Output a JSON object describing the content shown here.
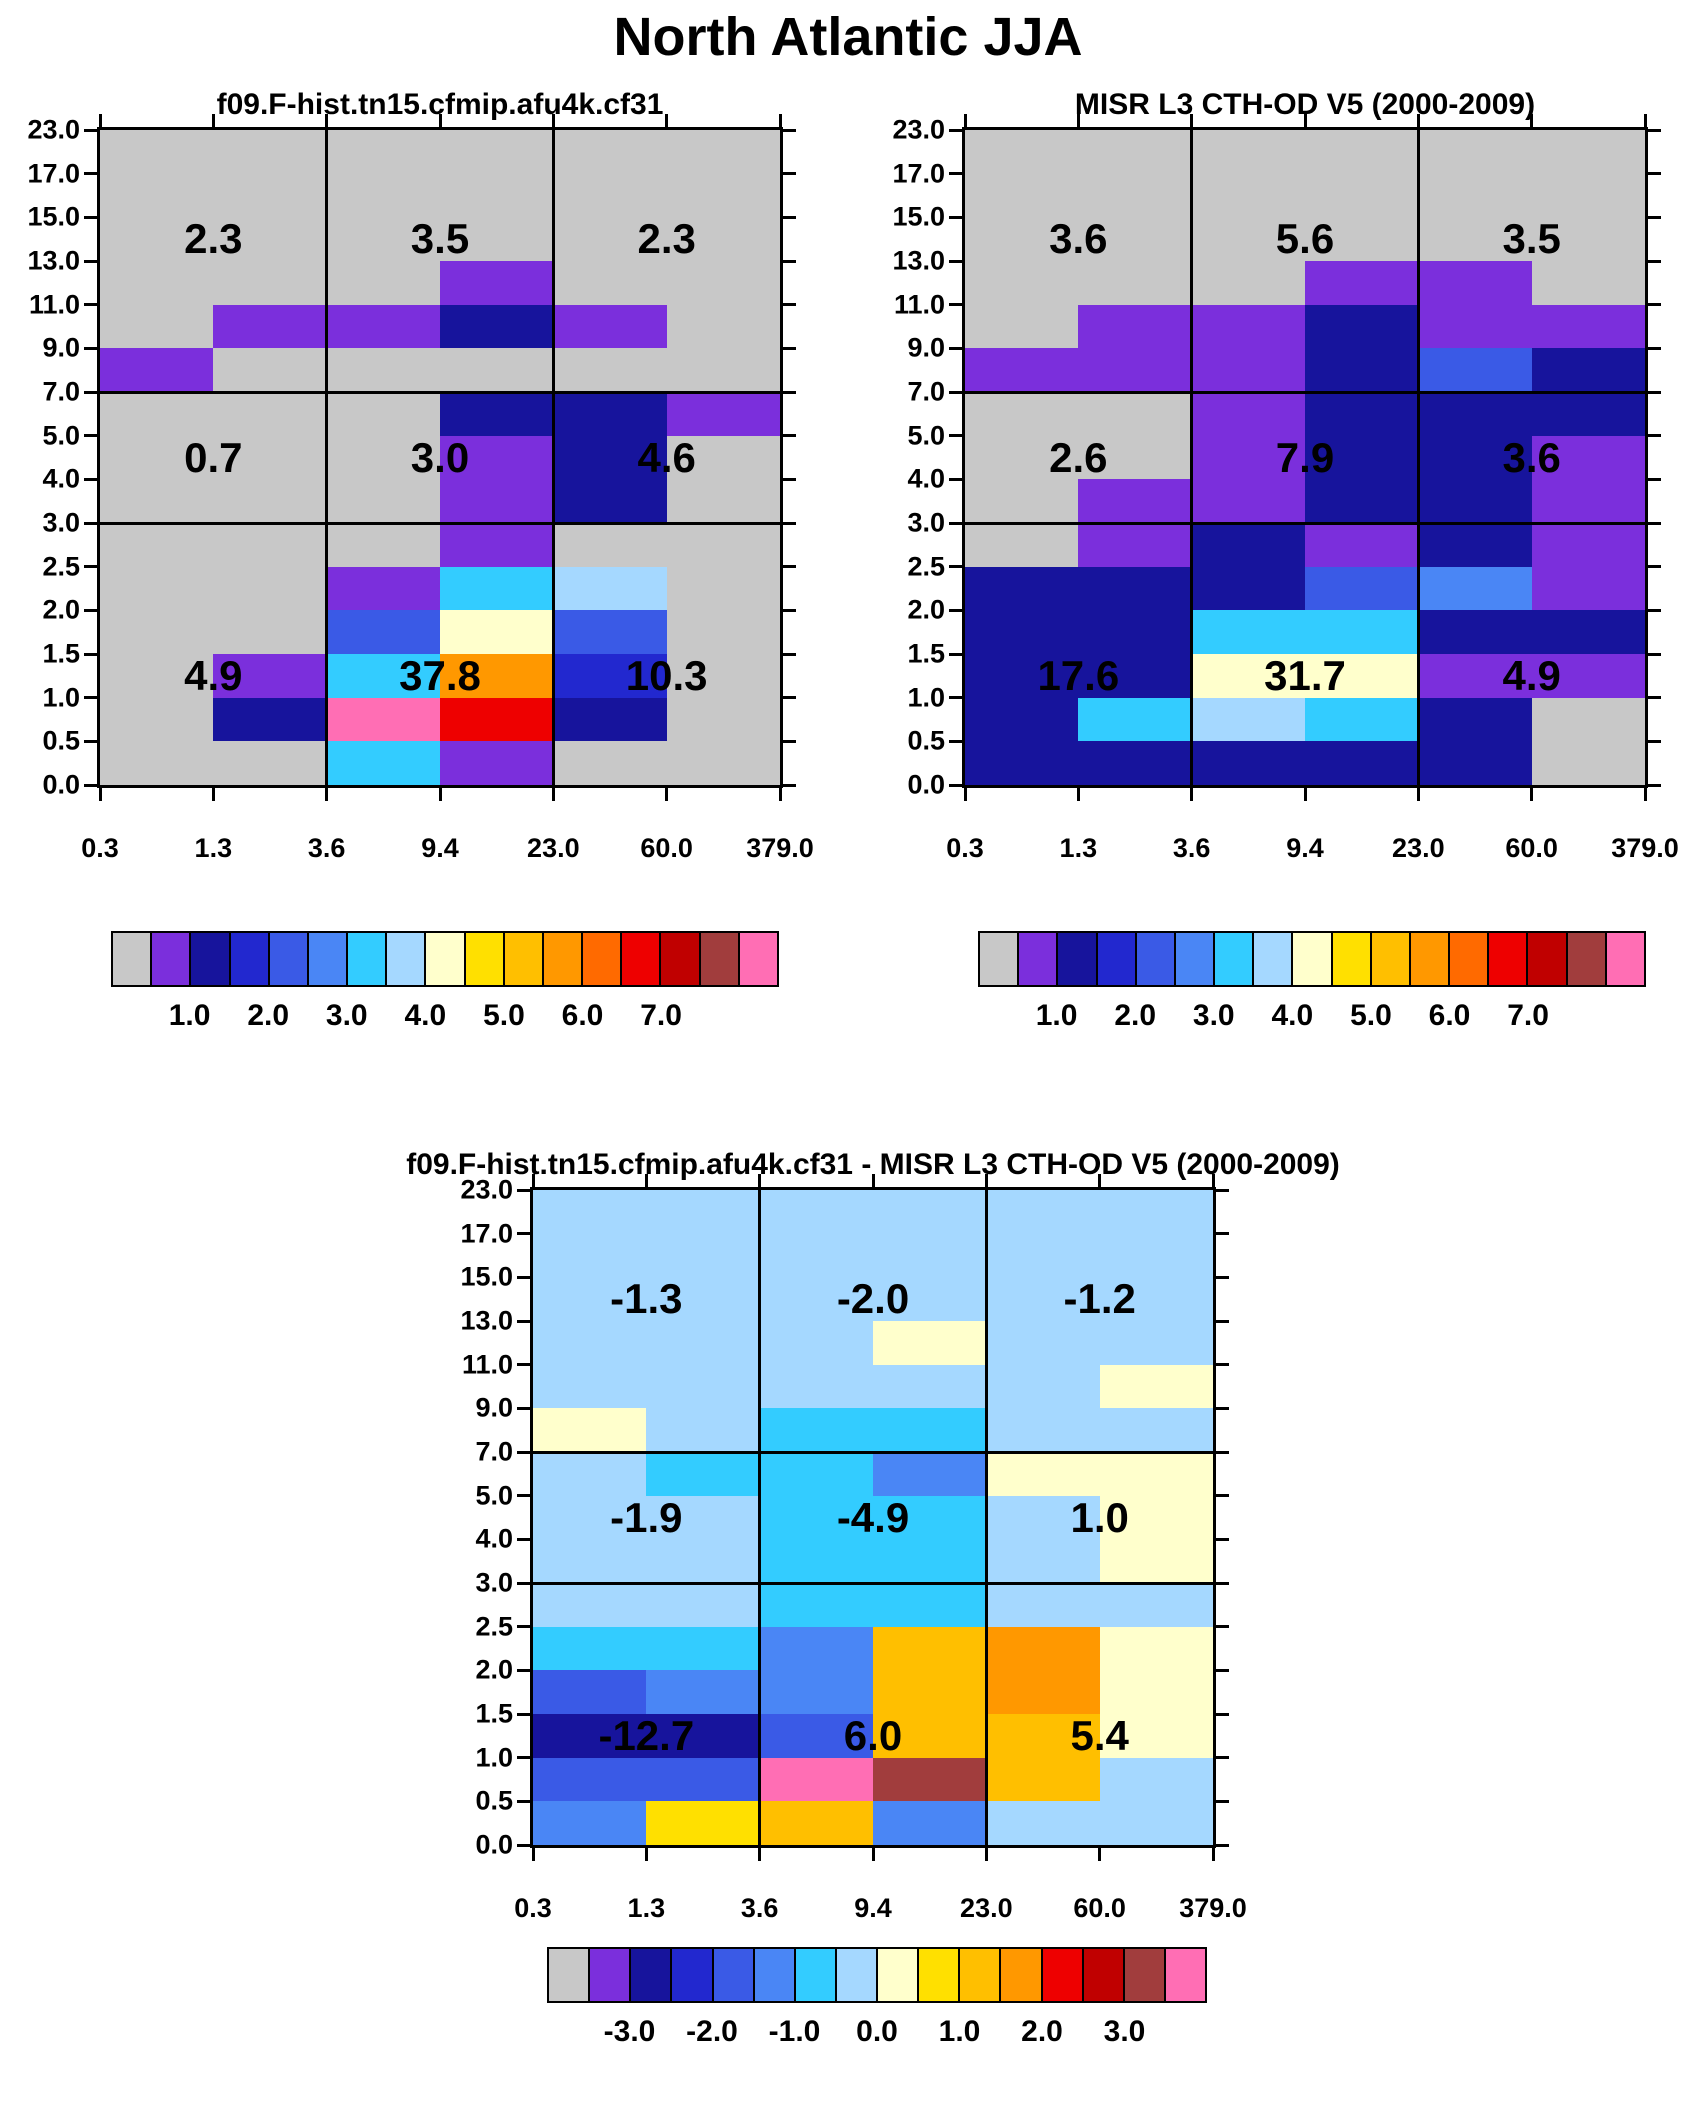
{
  "title": "North Atlantic JJA",
  "palettes": {
    "hist": [
      "#c8c8c8",
      "#7b2fdc",
      "#17149c",
      "#2228cf",
      "#3a5ae6",
      "#4a86f5",
      "#33ccff",
      "#a5d8ff",
      "#ffffcc",
      "#ffe000",
      "#ffbf00",
      "#ff9800",
      "#ff6a00",
      "#ee0000",
      "#c00000",
      "#a13d3d",
      "#ff6eb4"
    ],
    "diff": [
      "#c8c8c8",
      "#7b2fdc",
      "#17149c",
      "#2228cf",
      "#3a5ae6",
      "#4a86f5",
      "#33ccff",
      "#a5d8ff",
      "#ffffcc",
      "#ffe000",
      "#ffbf00",
      "#ff9800",
      "#ee0000",
      "#c00000",
      "#a13d3d",
      "#ff6eb4"
    ]
  },
  "chart_data": [
    {
      "type": "heatmap",
      "name": "model",
      "title": "f09.F-hist.tn15.cfmip.afu4k.cf31",
      "x_ticks": [
        "0.3",
        "1.3",
        "3.6",
        "9.4",
        "23.0",
        "60.0",
        "379.0"
      ],
      "y_ticks": [
        "23.0",
        "17.0",
        "15.0",
        "13.0",
        "11.0",
        "9.0",
        "7.0",
        "5.0",
        "4.0",
        "3.0",
        "2.5",
        "2.0",
        "1.5",
        "1.0",
        "0.5",
        "0.0"
      ],
      "palette": "hist",
      "grid": [
        [
          0,
          0,
          0,
          0,
          0,
          0
        ],
        [
          0,
          0,
          0,
          0,
          0,
          0
        ],
        [
          0,
          0,
          0,
          0,
          0,
          0
        ],
        [
          0,
          0,
          0,
          1,
          0,
          0
        ],
        [
          0,
          1,
          1,
          2,
          1,
          0
        ],
        [
          1,
          0,
          0,
          0,
          0,
          0
        ],
        [
          0,
          0,
          0,
          2,
          2,
          1
        ],
        [
          0,
          0,
          0,
          1,
          2,
          0
        ],
        [
          0,
          0,
          0,
          1,
          2,
          0
        ],
        [
          0,
          0,
          0,
          1,
          0,
          0
        ],
        [
          0,
          0,
          1,
          6,
          7,
          0
        ],
        [
          0,
          0,
          4,
          8,
          4,
          0
        ],
        [
          0,
          1,
          6,
          11,
          3,
          0
        ],
        [
          0,
          2,
          16,
          13,
          2,
          0
        ],
        [
          0,
          0,
          6,
          1,
          0,
          0
        ]
      ],
      "box_labels": [
        [
          "2.3",
          "3.5",
          "2.3"
        ],
        [
          "0.7",
          "3.0",
          "4.6"
        ],
        [
          "4.9",
          "37.8",
          "10.3"
        ]
      ],
      "colorbar_labels": [
        "1.0",
        "2.0",
        "3.0",
        "4.0",
        "5.0",
        "6.0",
        "7.0"
      ]
    },
    {
      "type": "heatmap",
      "name": "obs",
      "title": "MISR L3 CTH-OD V5 (2000-2009)",
      "x_ticks": [
        "0.3",
        "1.3",
        "3.6",
        "9.4",
        "23.0",
        "60.0",
        "379.0"
      ],
      "y_ticks": [
        "23.0",
        "17.0",
        "15.0",
        "13.0",
        "11.0",
        "9.0",
        "7.0",
        "5.0",
        "4.0",
        "3.0",
        "2.5",
        "2.0",
        "1.5",
        "1.0",
        "0.5",
        "0.0"
      ],
      "palette": "hist",
      "grid": [
        [
          0,
          0,
          0,
          0,
          0,
          0
        ],
        [
          0,
          0,
          0,
          0,
          0,
          0
        ],
        [
          0,
          0,
          0,
          0,
          0,
          0
        ],
        [
          0,
          0,
          0,
          1,
          1,
          0
        ],
        [
          0,
          1,
          1,
          2,
          1,
          1
        ],
        [
          1,
          1,
          1,
          2,
          4,
          2
        ],
        [
          0,
          0,
          1,
          2,
          2,
          2
        ],
        [
          0,
          0,
          1,
          2,
          2,
          1
        ],
        [
          0,
          1,
          1,
          2,
          2,
          1
        ],
        [
          0,
          1,
          2,
          1,
          2,
          1
        ],
        [
          2,
          2,
          2,
          4,
          5,
          1
        ],
        [
          2,
          2,
          6,
          6,
          2,
          2
        ],
        [
          2,
          2,
          8,
          8,
          1,
          1
        ],
        [
          2,
          6,
          7,
          6,
          2,
          0
        ],
        [
          2,
          2,
          2,
          2,
          2,
          0
        ]
      ],
      "box_labels": [
        [
          "3.6",
          "5.6",
          "3.5"
        ],
        [
          "2.6",
          "7.9",
          "3.6"
        ],
        [
          "17.6",
          "31.7",
          "4.9"
        ]
      ],
      "colorbar_labels": [
        "1.0",
        "2.0",
        "3.0",
        "4.0",
        "5.0",
        "6.0",
        "7.0"
      ]
    },
    {
      "type": "heatmap",
      "name": "difference",
      "title": "f09.F-hist.tn15.cfmip.afu4k.cf31 - MISR L3 CTH-OD V5 (2000-2009)",
      "x_ticks": [
        "0.3",
        "1.3",
        "3.6",
        "9.4",
        "23.0",
        "60.0",
        "379.0"
      ],
      "y_ticks": [
        "23.0",
        "17.0",
        "15.0",
        "13.0",
        "11.0",
        "9.0",
        "7.0",
        "5.0",
        "4.0",
        "3.0",
        "2.5",
        "2.0",
        "1.5",
        "1.0",
        "0.5",
        "0.0"
      ],
      "palette": "diff",
      "grid": [
        [
          7,
          7,
          7,
          7,
          7,
          7
        ],
        [
          7,
          7,
          7,
          7,
          7,
          7
        ],
        [
          7,
          7,
          7,
          7,
          7,
          7
        ],
        [
          7,
          7,
          7,
          8,
          7,
          7
        ],
        [
          7,
          7,
          7,
          7,
          7,
          8
        ],
        [
          8,
          7,
          6,
          6,
          7,
          7
        ],
        [
          7,
          6,
          6,
          5,
          8,
          8
        ],
        [
          7,
          7,
          6,
          6,
          7,
          8
        ],
        [
          7,
          7,
          6,
          6,
          7,
          8
        ],
        [
          7,
          7,
          6,
          6,
          7,
          7
        ],
        [
          6,
          6,
          5,
          10,
          11,
          8
        ],
        [
          4,
          5,
          5,
          10,
          11,
          8
        ],
        [
          2,
          2,
          4,
          10,
          10,
          8
        ],
        [
          4,
          4,
          15,
          14,
          10,
          7
        ],
        [
          5,
          9,
          10,
          5,
          7,
          7
        ]
      ],
      "box_labels": [
        [
          "-1.3",
          "-2.0",
          "-1.2"
        ],
        [
          "-1.9",
          "-4.9",
          "1.0"
        ],
        [
          "-12.7",
          "6.0",
          "5.4"
        ]
      ],
      "colorbar_labels": [
        "-3.0",
        "-2.0",
        "-1.0",
        "0.0",
        "1.0",
        "2.0",
        "3.0"
      ]
    }
  ]
}
